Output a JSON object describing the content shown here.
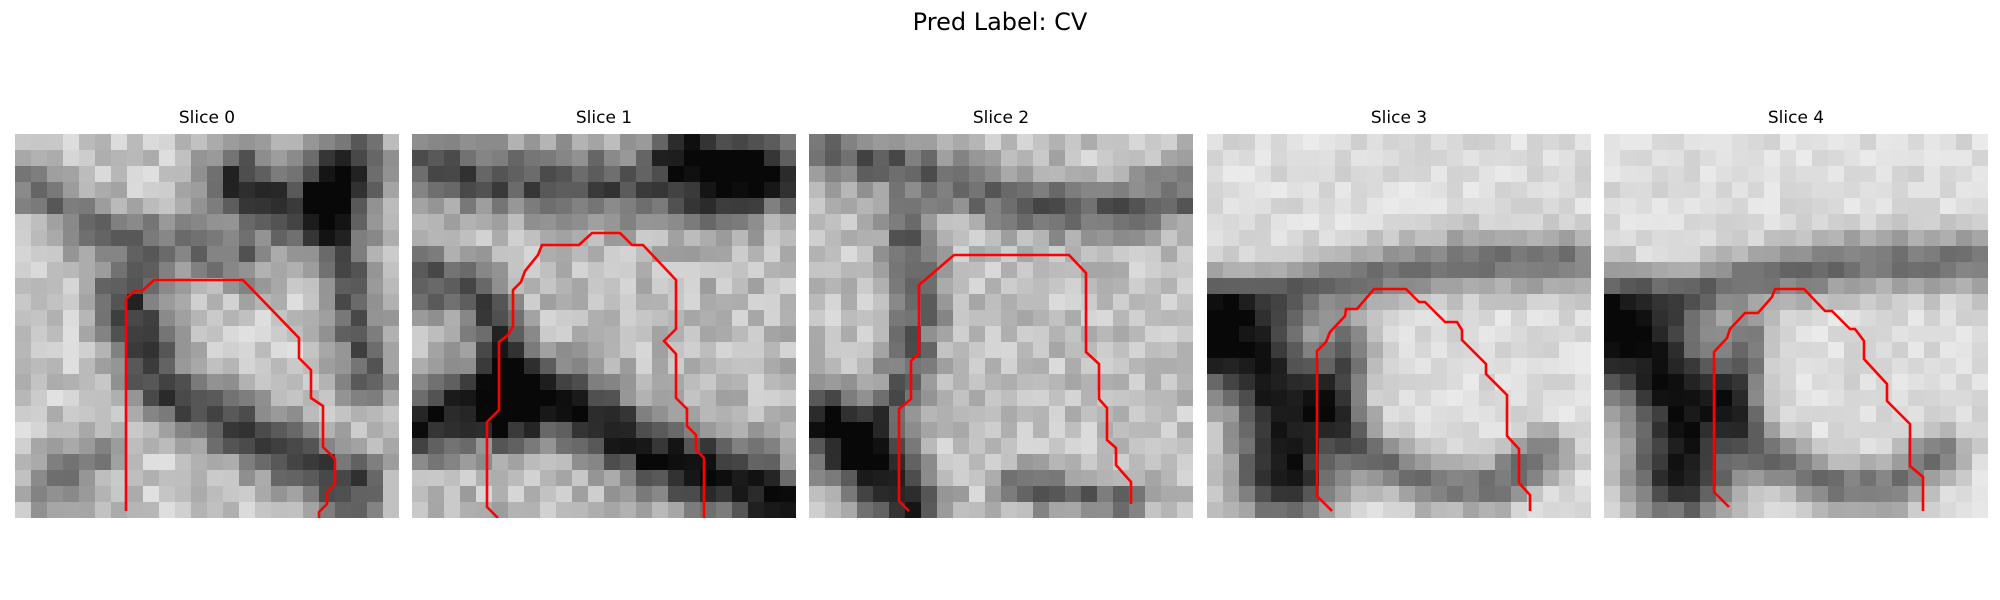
{
  "title": "Pred Label: CV",
  "contour_color": "#ff0000",
  "slices": [
    {
      "label": "Slice 0"
    },
    {
      "label": "Slice 1"
    },
    {
      "label": "Slice 2"
    },
    {
      "label": "Slice 3"
    },
    {
      "label": "Slice 4"
    }
  ]
}
